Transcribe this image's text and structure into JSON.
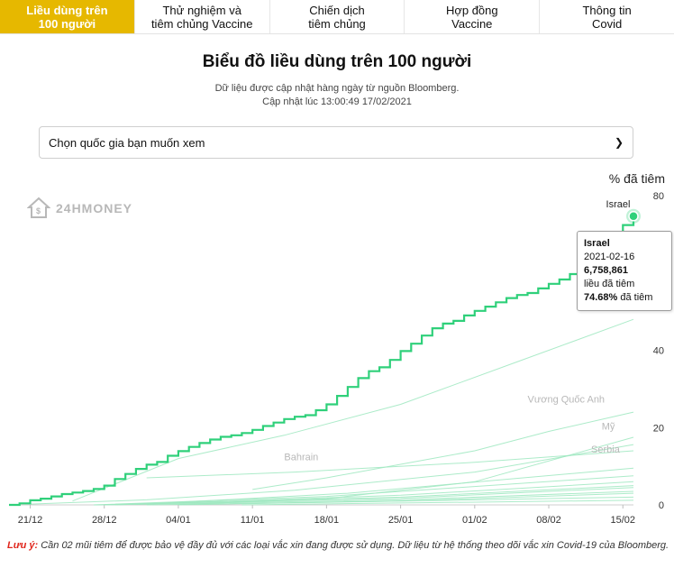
{
  "tabs": [
    {
      "label": "Liều dùng trên\n100 người",
      "active": true
    },
    {
      "label": "Thử nghiệm và\ntiêm chủng Vaccine",
      "active": false
    },
    {
      "label": "Chiến dịch\ntiêm chủng",
      "active": false
    },
    {
      "label": "Hợp đồng\nVaccine",
      "active": false
    },
    {
      "label": "Thông tin\nCovid",
      "active": false
    }
  ],
  "header": {
    "title": "Biểu đồ liều dùng trên 100 người",
    "source": "Dữ liệu được cập nhật hàng ngày từ nguồn Bloomberg.",
    "updated": "Cập nhật lúc 13:00:49 17/02/2021"
  },
  "country_select": {
    "value": "Chọn quốc gia bạn muốn xem"
  },
  "logo": {
    "text": "24HMONEY"
  },
  "colors": {
    "accent": "#e6b800",
    "line": "#2fd07a",
    "faint": "#9ee8c0",
    "warning": "#e0251b"
  },
  "tooltip": {
    "country": "Israel",
    "date": "2021-02-16",
    "doses": "6,758,861",
    "doses_label": "liều đã tiêm",
    "percent": "74.68%",
    "percent_label": "đã tiêm"
  },
  "note": {
    "label": "Lưu ý:",
    "text": "Cần 02 mũi tiêm để được bảo vệ đầy đủ với các loại vắc xin đang được sử dụng. Dữ liệu từ hệ thống theo dõi vắc xin Covid-19 của Bloomberg."
  },
  "chart_data": {
    "type": "line",
    "ylabel": "% đã tiêm",
    "ylim": [
      0,
      80
    ],
    "yticks": [
      0,
      20,
      40,
      60,
      80
    ],
    "x_range": [
      "2020-12-19",
      "2021-02-16"
    ],
    "xticks": [
      {
        "date": "2020-12-21",
        "label": "21/12"
      },
      {
        "date": "2020-12-28",
        "label": "28/12"
      },
      {
        "date": "2021-01-04",
        "label": "04/01"
      },
      {
        "date": "2021-01-11",
        "label": "11/01"
      },
      {
        "date": "2021-01-18",
        "label": "18/01"
      },
      {
        "date": "2021-01-25",
        "label": "25/01"
      },
      {
        "date": "2021-02-01",
        "label": "01/02"
      },
      {
        "date": "2021-02-08",
        "label": "08/02"
      },
      {
        "date": "2021-02-15",
        "label": "15/02"
      }
    ],
    "highlighted_series": "Israel",
    "series": [
      {
        "name": "Israel",
        "highlight": true,
        "points": [
          [
            "2020-12-19",
            0
          ],
          [
            "2020-12-20",
            0.4
          ],
          [
            "2020-12-21",
            1.2
          ],
          [
            "2020-12-22",
            1.6
          ],
          [
            "2020-12-23",
            2.2
          ],
          [
            "2020-12-24",
            2.8
          ],
          [
            "2020-12-25",
            3.2
          ],
          [
            "2020-12-26",
            3.6
          ],
          [
            "2020-12-27",
            4.1
          ],
          [
            "2020-12-28",
            5.0
          ],
          [
            "2020-12-29",
            6.7
          ],
          [
            "2020-12-30",
            8.0
          ],
          [
            "2020-12-31",
            9.3
          ],
          [
            "2021-01-01",
            10.4
          ],
          [
            "2021-01-02",
            11.1
          ],
          [
            "2021-01-03",
            12.7
          ],
          [
            "2021-01-04",
            13.9
          ],
          [
            "2021-01-05",
            15.0
          ],
          [
            "2021-01-06",
            16.0
          ],
          [
            "2021-01-07",
            16.9
          ],
          [
            "2021-01-08",
            17.6
          ],
          [
            "2021-01-09",
            18.0
          ],
          [
            "2021-01-10",
            18.6
          ],
          [
            "2021-01-11",
            19.4
          ],
          [
            "2021-01-12",
            20.4
          ],
          [
            "2021-01-13",
            21.3
          ],
          [
            "2021-01-14",
            22.2
          ],
          [
            "2021-01-15",
            22.8
          ],
          [
            "2021-01-16",
            23.2
          ],
          [
            "2021-01-17",
            24.5
          ],
          [
            "2021-01-18",
            26.0
          ],
          [
            "2021-01-19",
            28.2
          ],
          [
            "2021-01-20",
            30.5
          ],
          [
            "2021-01-21",
            32.8
          ],
          [
            "2021-01-22",
            34.6
          ],
          [
            "2021-01-23",
            35.6
          ],
          [
            "2021-01-24",
            37.5
          ],
          [
            "2021-01-25",
            39.8
          ],
          [
            "2021-01-26",
            41.7
          ],
          [
            "2021-01-27",
            43.8
          ],
          [
            "2021-01-28",
            45.7
          ],
          [
            "2021-01-29",
            46.9
          ],
          [
            "2021-01-30",
            47.6
          ],
          [
            "2021-01-31",
            49.0
          ],
          [
            "2021-02-01",
            50.2
          ],
          [
            "2021-02-02",
            51.3
          ],
          [
            "2021-02-03",
            52.4
          ],
          [
            "2021-02-04",
            53.5
          ],
          [
            "2021-02-05",
            54.3
          ],
          [
            "2021-02-06",
            54.8
          ],
          [
            "2021-02-07",
            56.0
          ],
          [
            "2021-02-08",
            57.2
          ],
          [
            "2021-02-09",
            58.3
          ],
          [
            "2021-02-10",
            59.7
          ],
          [
            "2021-02-11",
            61.4
          ],
          [
            "2021-02-12",
            65.0
          ],
          [
            "2021-02-13",
            67.3
          ],
          [
            "2021-02-14",
            69.6
          ],
          [
            "2021-02-15",
            72.4
          ],
          [
            "2021-02-16",
            74.68
          ]
        ]
      },
      {
        "name": "Bahrain",
        "label_at": [
          "2021-01-14",
          11.5
        ],
        "points": [
          [
            "2021-01-01",
            7.0
          ],
          [
            "2021-01-15",
            8.5
          ],
          [
            "2021-02-01",
            11.0
          ],
          [
            "2021-02-16",
            14.0
          ]
        ]
      },
      {
        "name": "Vương Quốc Anh",
        "label_at": [
          "2021-02-06",
          26.5
        ],
        "points": [
          [
            "2021-01-11",
            4.0
          ],
          [
            "2021-01-18",
            7.0
          ],
          [
            "2021-01-25",
            10.5
          ],
          [
            "2021-02-01",
            14.0
          ],
          [
            "2021-02-08",
            19.0
          ],
          [
            "2021-02-16",
            24.0
          ]
        ]
      },
      {
        "name": "Mỹ",
        "label_at": [
          "2021-02-13",
          19.5
        ],
        "points": [
          [
            "2020-12-21",
            0.2
          ],
          [
            "2021-01-01",
            1.3
          ],
          [
            "2021-01-15",
            3.8
          ],
          [
            "2021-02-01",
            8.5
          ],
          [
            "2021-02-16",
            15.6
          ]
        ]
      },
      {
        "name": "Serbia",
        "label_at": [
          "2021-02-12",
          13.5
        ],
        "points": [
          [
            "2021-01-04",
            0.1
          ],
          [
            "2021-01-18",
            1.6
          ],
          [
            "2021-02-01",
            6.0
          ],
          [
            "2021-02-16",
            17.5
          ]
        ]
      },
      {
        "name": "",
        "points": [
          [
            "2020-12-25",
            1.0
          ],
          [
            "2021-01-04",
            12.0
          ],
          [
            "2021-01-14",
            18.0
          ],
          [
            "2021-01-25",
            26.0
          ],
          [
            "2021-02-05",
            37.0
          ],
          [
            "2021-02-16",
            48.0
          ]
        ]
      },
      {
        "name": "",
        "points": [
          [
            "2020-12-31",
            0.1
          ],
          [
            "2021-01-20",
            3.0
          ],
          [
            "2021-02-16",
            9.5
          ]
        ]
      },
      {
        "name": "",
        "points": [
          [
            "2020-12-28",
            0.1
          ],
          [
            "2021-01-18",
            2.2
          ],
          [
            "2021-02-16",
            7.5
          ]
        ]
      },
      {
        "name": "",
        "points": [
          [
            "2020-12-29",
            0.0
          ],
          [
            "2021-01-25",
            2.5
          ],
          [
            "2021-02-16",
            6.0
          ]
        ]
      },
      {
        "name": "",
        "points": [
          [
            "2020-12-27",
            0.0
          ],
          [
            "2021-01-25",
            2.0
          ],
          [
            "2021-02-16",
            5.0
          ]
        ]
      },
      {
        "name": "",
        "points": [
          [
            "2020-12-27",
            0.0
          ],
          [
            "2021-01-25",
            1.7
          ],
          [
            "2021-02-16",
            4.5
          ]
        ]
      },
      {
        "name": "",
        "points": [
          [
            "2020-12-28",
            0.0
          ],
          [
            "2021-01-25",
            1.3
          ],
          [
            "2021-02-16",
            3.5
          ]
        ]
      },
      {
        "name": "",
        "points": [
          [
            "2021-01-01",
            0.0
          ],
          [
            "2021-01-25",
            1.0
          ],
          [
            "2021-02-16",
            3.0
          ]
        ]
      },
      {
        "name": "",
        "points": [
          [
            "2021-01-04",
            0.0
          ],
          [
            "2021-02-16",
            2.0
          ]
        ]
      },
      {
        "name": "",
        "points": [
          [
            "2021-01-10",
            0.0
          ],
          [
            "2021-02-16",
            1.2
          ]
        ]
      }
    ]
  }
}
